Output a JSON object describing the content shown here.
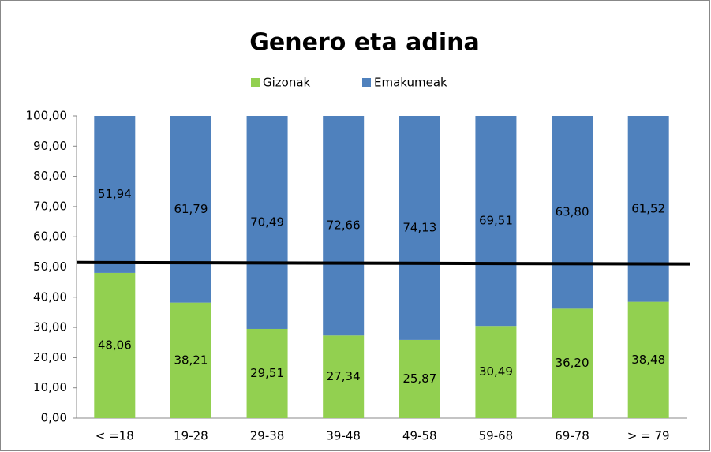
{
  "chart_data": {
    "type": "stacked_bar",
    "title": "Genero eta adina",
    "categories": [
      "< =18",
      "19-28",
      "29-38",
      "39-48",
      "49-58",
      "59-68",
      "69-78",
      "> = 79"
    ],
    "series": [
      {
        "name": "Gizonak",
        "color": "#92d050",
        "values": [
          48.06,
          38.21,
          29.51,
          27.34,
          25.87,
          30.49,
          36.2,
          38.48
        ],
        "value_labels": [
          "48,06",
          "38,21",
          "29,51",
          "27,34",
          "25,87",
          "30,49",
          "36,20",
          "38,48"
        ]
      },
      {
        "name": "Emakumeak",
        "color": "#4f81bd",
        "values": [
          51.94,
          61.79,
          70.49,
          72.66,
          74.13,
          69.51,
          63.8,
          61.52
        ],
        "value_labels": [
          "51,94",
          "61,79",
          "70,49",
          "72,66",
          "74,13",
          "69,51",
          "63,80",
          "61,52"
        ]
      }
    ],
    "ylim": [
      0,
      100
    ],
    "yticks": [
      {
        "value": 0,
        "label": "0,00"
      },
      {
        "value": 10,
        "label": "10,00"
      },
      {
        "value": 20,
        "label": "20,00"
      },
      {
        "value": 30,
        "label": "30,00"
      },
      {
        "value": 40,
        "label": "40,00"
      },
      {
        "value": 50,
        "label": "50,00"
      },
      {
        "value": 60,
        "label": "60,00"
      },
      {
        "value": 70,
        "label": "70,00"
      },
      {
        "value": 80,
        "label": "80,00"
      },
      {
        "value": 90,
        "label": "90,00"
      },
      {
        "value": 100,
        "label": "100,00"
      }
    ],
    "reference_line": {
      "start": 51.5,
      "end": 51.0,
      "color": "#000000"
    },
    "legend": "top"
  }
}
